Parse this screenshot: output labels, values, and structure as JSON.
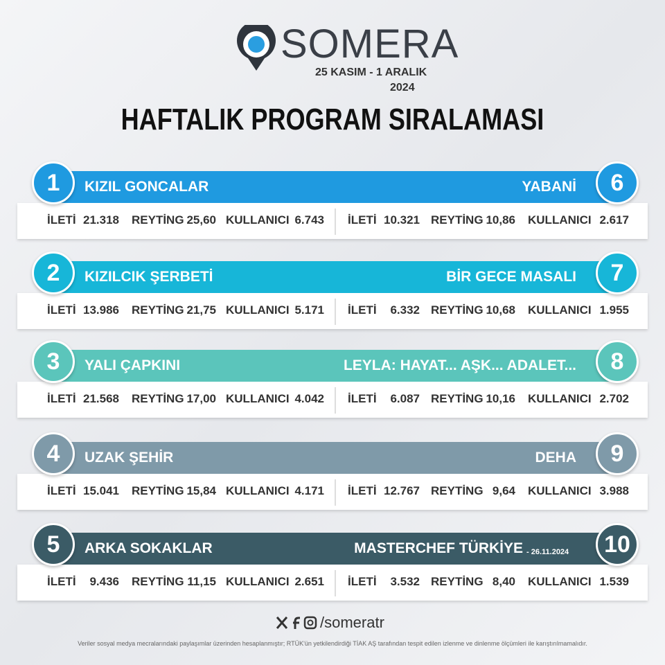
{
  "header": {
    "brand": "SOMERA",
    "dates": "25 KASIM - 1 ARALIK",
    "year": "2024",
    "title": "HAFTALIK PROGRAM SIRALAMASI"
  },
  "labels": [
    "İLETİ",
    "REYTİNG",
    "KULLANICI"
  ],
  "rows": [
    {
      "color": "#1f9ae0",
      "left": {
        "rank": "1",
        "name": "KIZIL GONCALAR",
        "stats": [
          "21.318",
          "25,60",
          "6.743"
        ]
      },
      "right": {
        "rank": "6",
        "name": "YABANİ",
        "stats": [
          "10.321",
          "10,86",
          "2.617"
        ]
      }
    },
    {
      "color": "#17b6d8",
      "left": {
        "rank": "2",
        "name": "KIZILCIK ŞERBETİ",
        "stats": [
          "13.986",
          "21,75",
          "5.171"
        ]
      },
      "right": {
        "rank": "7",
        "name": "BİR GECE MASALI",
        "stats": [
          "6.332",
          "10,68",
          "1.955"
        ]
      }
    },
    {
      "color": "#5bc5bb",
      "left": {
        "rank": "3",
        "name": "YALI ÇAPKINI",
        "stats": [
          "21.568",
          "17,00",
          "4.042"
        ]
      },
      "right": {
        "rank": "8",
        "name": "LEYLA: HAYAT... AŞK... ADALET...",
        "stats": [
          "6.087",
          "10,16",
          "2.702"
        ]
      }
    },
    {
      "color": "#7f9aa9",
      "left": {
        "rank": "4",
        "name": "UZAK ŞEHİR",
        "stats": [
          "15.041",
          "15,84",
          "4.171"
        ]
      },
      "right": {
        "rank": "9",
        "name": "DEHA",
        "stats": [
          "12.767",
          "9,64",
          "3.988"
        ]
      }
    },
    {
      "color": "#3b5b66",
      "left": {
        "rank": "5",
        "name": "ARKA SOKAKLAR",
        "stats": [
          "9.436",
          "11,15",
          "2.651"
        ]
      },
      "right": {
        "rank": "10",
        "name": "MASTERCHEF TÜRKİYE",
        "note": "- 26.11.2024",
        "stats": [
          "3.532",
          "8,40",
          "1.539"
        ]
      }
    }
  ],
  "footer": {
    "handle": "/someratr",
    "disclaimer": "Veriler sosyal medya mecralarındaki paylaşımlar üzerinden hesaplanmıştır; RTÜK'ün yetkilendirdiği TİAK AŞ tarafından tespit edilen izlenme ve dinlenme ölçümleri ile karıştırılmamalıdır."
  }
}
